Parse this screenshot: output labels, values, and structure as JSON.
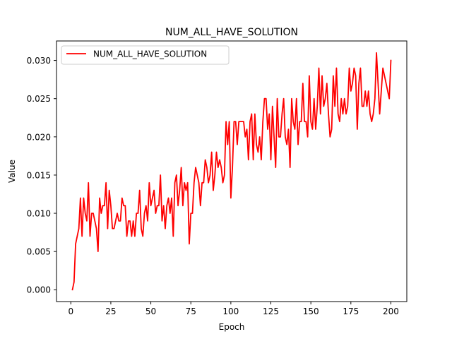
{
  "chart_data": {
    "type": "line",
    "title": "NUM_ALL_HAVE_SOLUTION",
    "xlabel": "Epoch",
    "ylabel": "Value",
    "xlim": [
      -8.95,
      209.95
    ],
    "ylim": [
      -0.00155,
      0.03255
    ],
    "xticks": [
      0,
      25,
      50,
      75,
      100,
      125,
      150,
      175,
      200
    ],
    "yticks": [
      0.0,
      0.005,
      0.01,
      0.015,
      0.02,
      0.025,
      0.03
    ],
    "ytick_labels": [
      "0.000",
      "0.005",
      "0.010",
      "0.015",
      "0.020",
      "0.025",
      "0.030"
    ],
    "grid": false,
    "legend": {
      "placement": "upper-left"
    },
    "series": [
      {
        "name": "NUM_ALL_HAVE_SOLUTION",
        "color": "#ff0000",
        "x_start": 1,
        "x_step": 1,
        "values": [
          0.0,
          0.001,
          0.006,
          0.007,
          0.008,
          0.012,
          0.007,
          0.012,
          0.01,
          0.009,
          0.014,
          0.007,
          0.01,
          0.01,
          0.009,
          0.008,
          0.005,
          0.012,
          0.01,
          0.011,
          0.011,
          0.014,
          0.008,
          0.013,
          0.011,
          0.008,
          0.008,
          0.009,
          0.01,
          0.009,
          0.009,
          0.012,
          0.011,
          0.011,
          0.007,
          0.009,
          0.009,
          0.007,
          0.009,
          0.007,
          0.01,
          0.01,
          0.013,
          0.008,
          0.007,
          0.01,
          0.011,
          0.009,
          0.014,
          0.011,
          0.012,
          0.013,
          0.01,
          0.011,
          0.011,
          0.015,
          0.009,
          0.011,
          0.008,
          0.011,
          0.012,
          0.01,
          0.012,
          0.007,
          0.014,
          0.015,
          0.011,
          0.013,
          0.016,
          0.011,
          0.014,
          0.013,
          0.014,
          0.006,
          0.01,
          0.01,
          0.014,
          0.016,
          0.015,
          0.014,
          0.011,
          0.014,
          0.014,
          0.017,
          0.016,
          0.014,
          0.015,
          0.018,
          0.013,
          0.015,
          0.018,
          0.016,
          0.017,
          0.016,
          0.014,
          0.015,
          0.022,
          0.019,
          0.022,
          0.012,
          0.016,
          0.022,
          0.022,
          0.019,
          0.022,
          0.022,
          0.022,
          0.022,
          0.02,
          0.021,
          0.017,
          0.022,
          0.023,
          0.017,
          0.023,
          0.019,
          0.018,
          0.02,
          0.017,
          0.022,
          0.025,
          0.025,
          0.021,
          0.023,
          0.017,
          0.024,
          0.02,
          0.016,
          0.025,
          0.02,
          0.02,
          0.023,
          0.025,
          0.02,
          0.019,
          0.021,
          0.016,
          0.025,
          0.022,
          0.021,
          0.025,
          0.019,
          0.022,
          0.022,
          0.027,
          0.022,
          0.022,
          0.02,
          0.028,
          0.022,
          0.021,
          0.025,
          0.021,
          0.024,
          0.029,
          0.023,
          0.028,
          0.024,
          0.025,
          0.027,
          0.023,
          0.02,
          0.021,
          0.028,
          0.024,
          0.029,
          0.023,
          0.022,
          0.025,
          0.023,
          0.025,
          0.023,
          0.024,
          0.029,
          0.026,
          0.027,
          0.029,
          0.028,
          0.021,
          0.027,
          0.029,
          0.024,
          0.024,
          0.026,
          0.024,
          0.026,
          0.023,
          0.022,
          0.023,
          0.025,
          0.031,
          0.027,
          0.023,
          0.026,
          0.029,
          0.028,
          0.027,
          0.026,
          0.025,
          0.03
        ]
      }
    ]
  }
}
